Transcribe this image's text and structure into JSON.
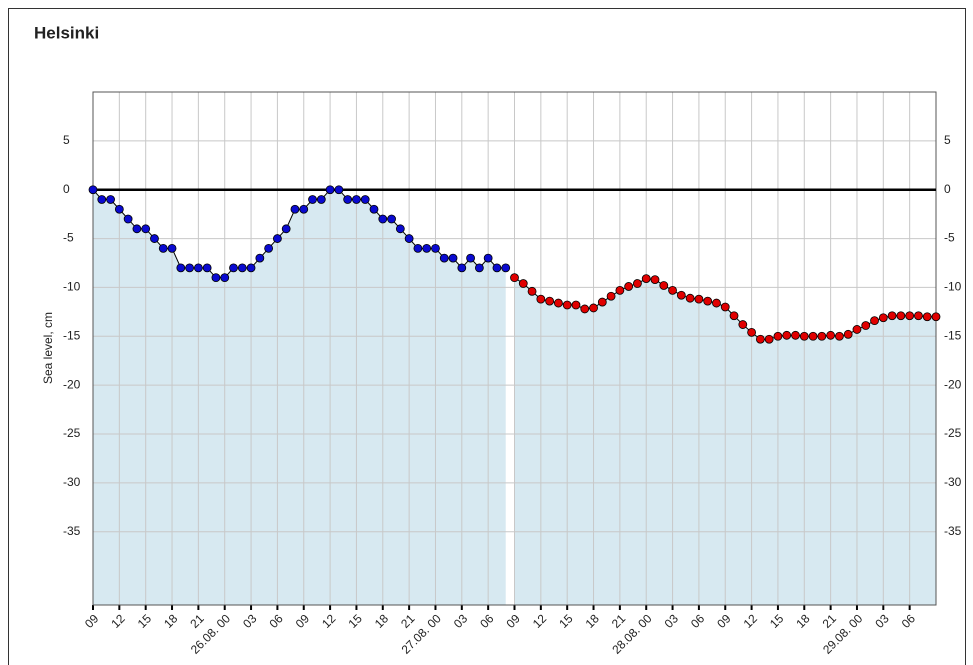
{
  "chart_data": {
    "type": "line",
    "title": "Helsinki",
    "y_label": "Sea level, cm",
    "xlim": [
      0,
      96
    ],
    "ylim": [
      -42.5,
      10
    ],
    "yticks": [
      5,
      0,
      -5,
      -10,
      -15,
      -20,
      -25,
      -30,
      -35
    ],
    "xticks": [
      {
        "value": 0,
        "label": "09"
      },
      {
        "value": 3,
        "label": "12"
      },
      {
        "value": 6,
        "label": "15"
      },
      {
        "value": 9,
        "label": "18"
      },
      {
        "value": 12,
        "label": "21"
      },
      {
        "value": 15,
        "label": "26.08. 00"
      },
      {
        "value": 18,
        "label": "03"
      },
      {
        "value": 21,
        "label": "06"
      },
      {
        "value": 24,
        "label": "09"
      },
      {
        "value": 27,
        "label": "12"
      },
      {
        "value": 30,
        "label": "15"
      },
      {
        "value": 33,
        "label": "18"
      },
      {
        "value": 36,
        "label": "21"
      },
      {
        "value": 39,
        "label": "27.08. 00"
      },
      {
        "value": 42,
        "label": "03"
      },
      {
        "value": 45,
        "label": "06"
      },
      {
        "value": 48,
        "label": "09"
      },
      {
        "value": 51,
        "label": "12"
      },
      {
        "value": 54,
        "label": "15"
      },
      {
        "value": 57,
        "label": "18"
      },
      {
        "value": 60,
        "label": "21"
      },
      {
        "value": 63,
        "label": "28.08. 00"
      },
      {
        "value": 66,
        "label": "03"
      },
      {
        "value": 69,
        "label": "06"
      },
      {
        "value": 72,
        "label": "09"
      },
      {
        "value": 75,
        "label": "12"
      },
      {
        "value": 78,
        "label": "15"
      },
      {
        "value": 81,
        "label": "18"
      },
      {
        "value": 84,
        "label": "21"
      },
      {
        "value": 87,
        "label": "29.08. 00"
      },
      {
        "value": 90,
        "label": "03"
      },
      {
        "value": 93,
        "label": "06"
      }
    ],
    "grid": true,
    "reference_line": 0,
    "fill_color": "#d7e9f1",
    "series": [
      {
        "color": "#0a0ad0",
        "x": [
          0,
          1,
          2,
          3,
          4,
          5,
          6,
          7,
          8,
          9,
          10,
          11,
          12,
          13,
          14,
          15,
          16,
          17,
          18,
          19,
          20,
          21,
          22,
          23,
          24,
          25,
          26,
          27,
          28,
          29,
          30,
          31,
          32,
          33,
          34,
          35,
          36,
          37,
          38,
          39,
          40,
          41,
          42,
          43,
          44,
          45,
          46,
          47
        ],
        "values": [
          0,
          -1,
          -1,
          -2,
          -3,
          -4,
          -4,
          -5,
          -6,
          -6,
          -8,
          -8,
          -8,
          -8,
          -9,
          -9,
          -8,
          -8,
          -8,
          -7,
          -6,
          -5,
          -4,
          -2,
          -2,
          -1,
          -1,
          0,
          0,
          -1,
          -1,
          -1,
          -2,
          -3,
          -3,
          -4,
          -5,
          -6,
          -6,
          -6,
          -7,
          -7,
          -8,
          -7,
          -8,
          -7,
          -8,
          -8
        ]
      },
      {
        "color": "#e00000",
        "x": [
          48,
          49,
          50,
          51,
          52,
          53,
          54,
          55,
          56,
          57,
          58,
          59,
          60,
          61,
          62,
          63,
          64,
          65,
          66,
          67,
          68,
          69,
          70,
          71,
          72,
          73,
          74,
          75,
          76,
          77,
          78,
          79,
          80,
          81,
          82,
          83,
          84,
          85,
          86,
          87,
          88,
          89,
          90,
          91,
          92,
          93,
          94,
          95,
          96
        ],
        "values": [
          -9.0,
          -9.6,
          -10.4,
          -11.2,
          -11.4,
          -11.6,
          -11.8,
          -11.8,
          -12.2,
          -12.1,
          -11.5,
          -10.9,
          -10.3,
          -9.9,
          -9.6,
          -9.1,
          -9.2,
          -9.8,
          -10.3,
          -10.8,
          -11.1,
          -11.2,
          -11.4,
          -11.6,
          -12.0,
          -12.9,
          -13.8,
          -14.6,
          -15.3,
          -15.3,
          -15.0,
          -14.9,
          -14.9,
          -15.0,
          -15.0,
          -15.0,
          -14.9,
          -15.0,
          -14.8,
          -14.3,
          -13.9,
          -13.4,
          -13.1,
          -12.9,
          -12.9,
          -12.9,
          -12.9,
          -13.0,
          -13.0
        ]
      }
    ]
  }
}
